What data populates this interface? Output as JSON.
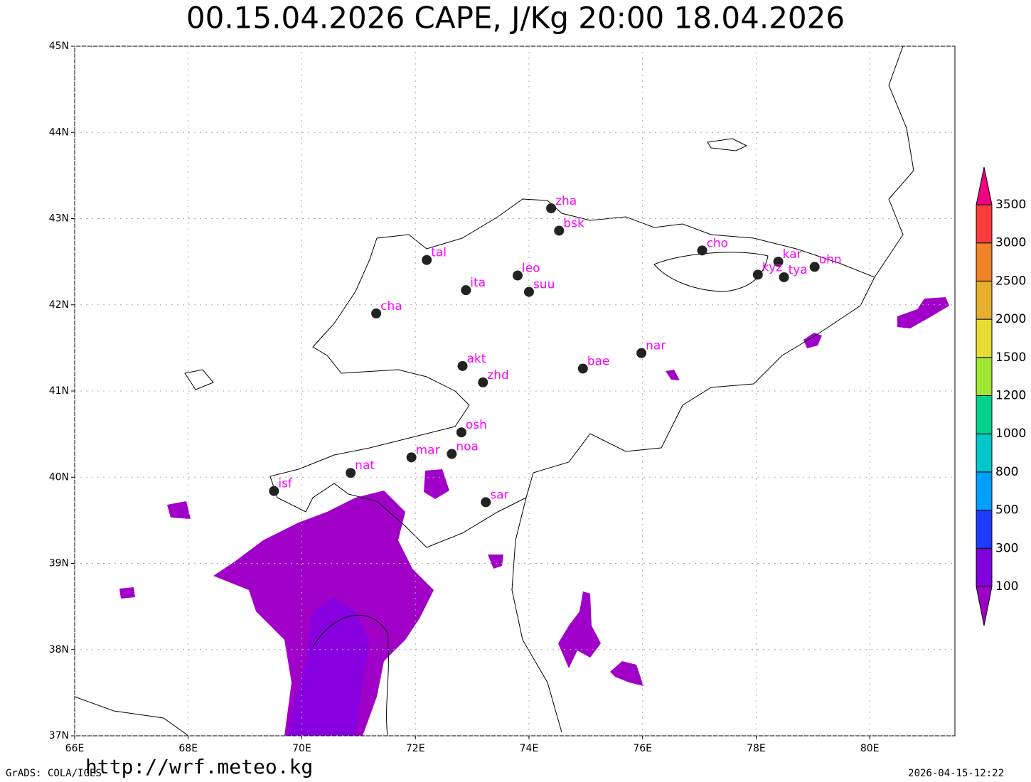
{
  "title": "00.15.04.2026 CAPE, J/Kg 20:00 18.04.2026",
  "map": {
    "xlim": [
      66,
      81.5
    ],
    "ylim": [
      37,
      45
    ],
    "xticks": [
      {
        "value": 66,
        "label": "66E"
      },
      {
        "value": 68,
        "label": "68E"
      },
      {
        "value": 70,
        "label": "70E"
      },
      {
        "value": 72,
        "label": "72E"
      },
      {
        "value": 74,
        "label": "74E"
      },
      {
        "value": 76,
        "label": "76E"
      },
      {
        "value": 78,
        "label": "78E"
      },
      {
        "value": 80,
        "label": "80E"
      }
    ],
    "yticks": [
      {
        "value": 37,
        "label": "37N"
      },
      {
        "value": 38,
        "label": "38N"
      },
      {
        "value": 39,
        "label": "39N"
      },
      {
        "value": 40,
        "label": "40N"
      },
      {
        "value": 41,
        "label": "41N"
      },
      {
        "value": 42,
        "label": "42N"
      },
      {
        "value": 43,
        "label": "43N"
      },
      {
        "value": 44,
        "label": "44N"
      },
      {
        "value": 45,
        "label": "45N"
      }
    ],
    "grid": true,
    "station_color": "#222222",
    "label_color": "#ff00ff"
  },
  "stations": [
    {
      "name": "zha",
      "lon": 74.39,
      "lat": 43.12
    },
    {
      "name": "bsk",
      "lon": 74.53,
      "lat": 42.86
    },
    {
      "name": "tal",
      "lon": 72.2,
      "lat": 42.52
    },
    {
      "name": "leo",
      "lon": 73.8,
      "lat": 42.34
    },
    {
      "name": "suu",
      "lon": 74.0,
      "lat": 42.15
    },
    {
      "name": "ita",
      "lon": 72.89,
      "lat": 42.17
    },
    {
      "name": "cha",
      "lon": 71.31,
      "lat": 41.9
    },
    {
      "name": "cho",
      "lon": 77.05,
      "lat": 42.63
    },
    {
      "name": "kar",
      "lon": 78.39,
      "lat": 42.5
    },
    {
      "name": "kyz",
      "lon": 78.03,
      "lat": 42.35
    },
    {
      "name": "tya",
      "lon": 78.49,
      "lat": 42.32
    },
    {
      "name": "ohn",
      "lon": 79.03,
      "lat": 42.44
    },
    {
      "name": "nar",
      "lon": 75.98,
      "lat": 41.44
    },
    {
      "name": "bae",
      "lon": 74.95,
      "lat": 41.26
    },
    {
      "name": "akt",
      "lon": 72.83,
      "lat": 41.29
    },
    {
      "name": "zhd",
      "lon": 73.19,
      "lat": 41.1
    },
    {
      "name": "osh",
      "lon": 72.81,
      "lat": 40.52
    },
    {
      "name": "noa",
      "lon": 72.64,
      "lat": 40.27
    },
    {
      "name": "mar",
      "lon": 71.93,
      "lat": 40.23
    },
    {
      "name": "nat",
      "lon": 70.86,
      "lat": 40.05
    },
    {
      "name": "isf",
      "lon": 69.51,
      "lat": 39.84
    },
    {
      "name": "sar",
      "lon": 73.24,
      "lat": 39.71
    }
  ],
  "colorbar": {
    "levels": [
      100,
      300,
      500,
      800,
      1000,
      1200,
      1500,
      2000,
      2500,
      3000,
      3500
    ],
    "colors": [
      "#a000c8",
      "#8200dc",
      "#1e3cff",
      "#00a0ff",
      "#00c8c8",
      "#00d28c",
      "#a0e632",
      "#e6dc32",
      "#e6af2d",
      "#f08228",
      "#fa3c3c",
      "#f00082"
    ]
  },
  "footer": {
    "credit": "GrADS: COLA/IGES",
    "url": "http://wrf.meteo.kg",
    "timestamp": "2026-04-15-12:22"
  }
}
